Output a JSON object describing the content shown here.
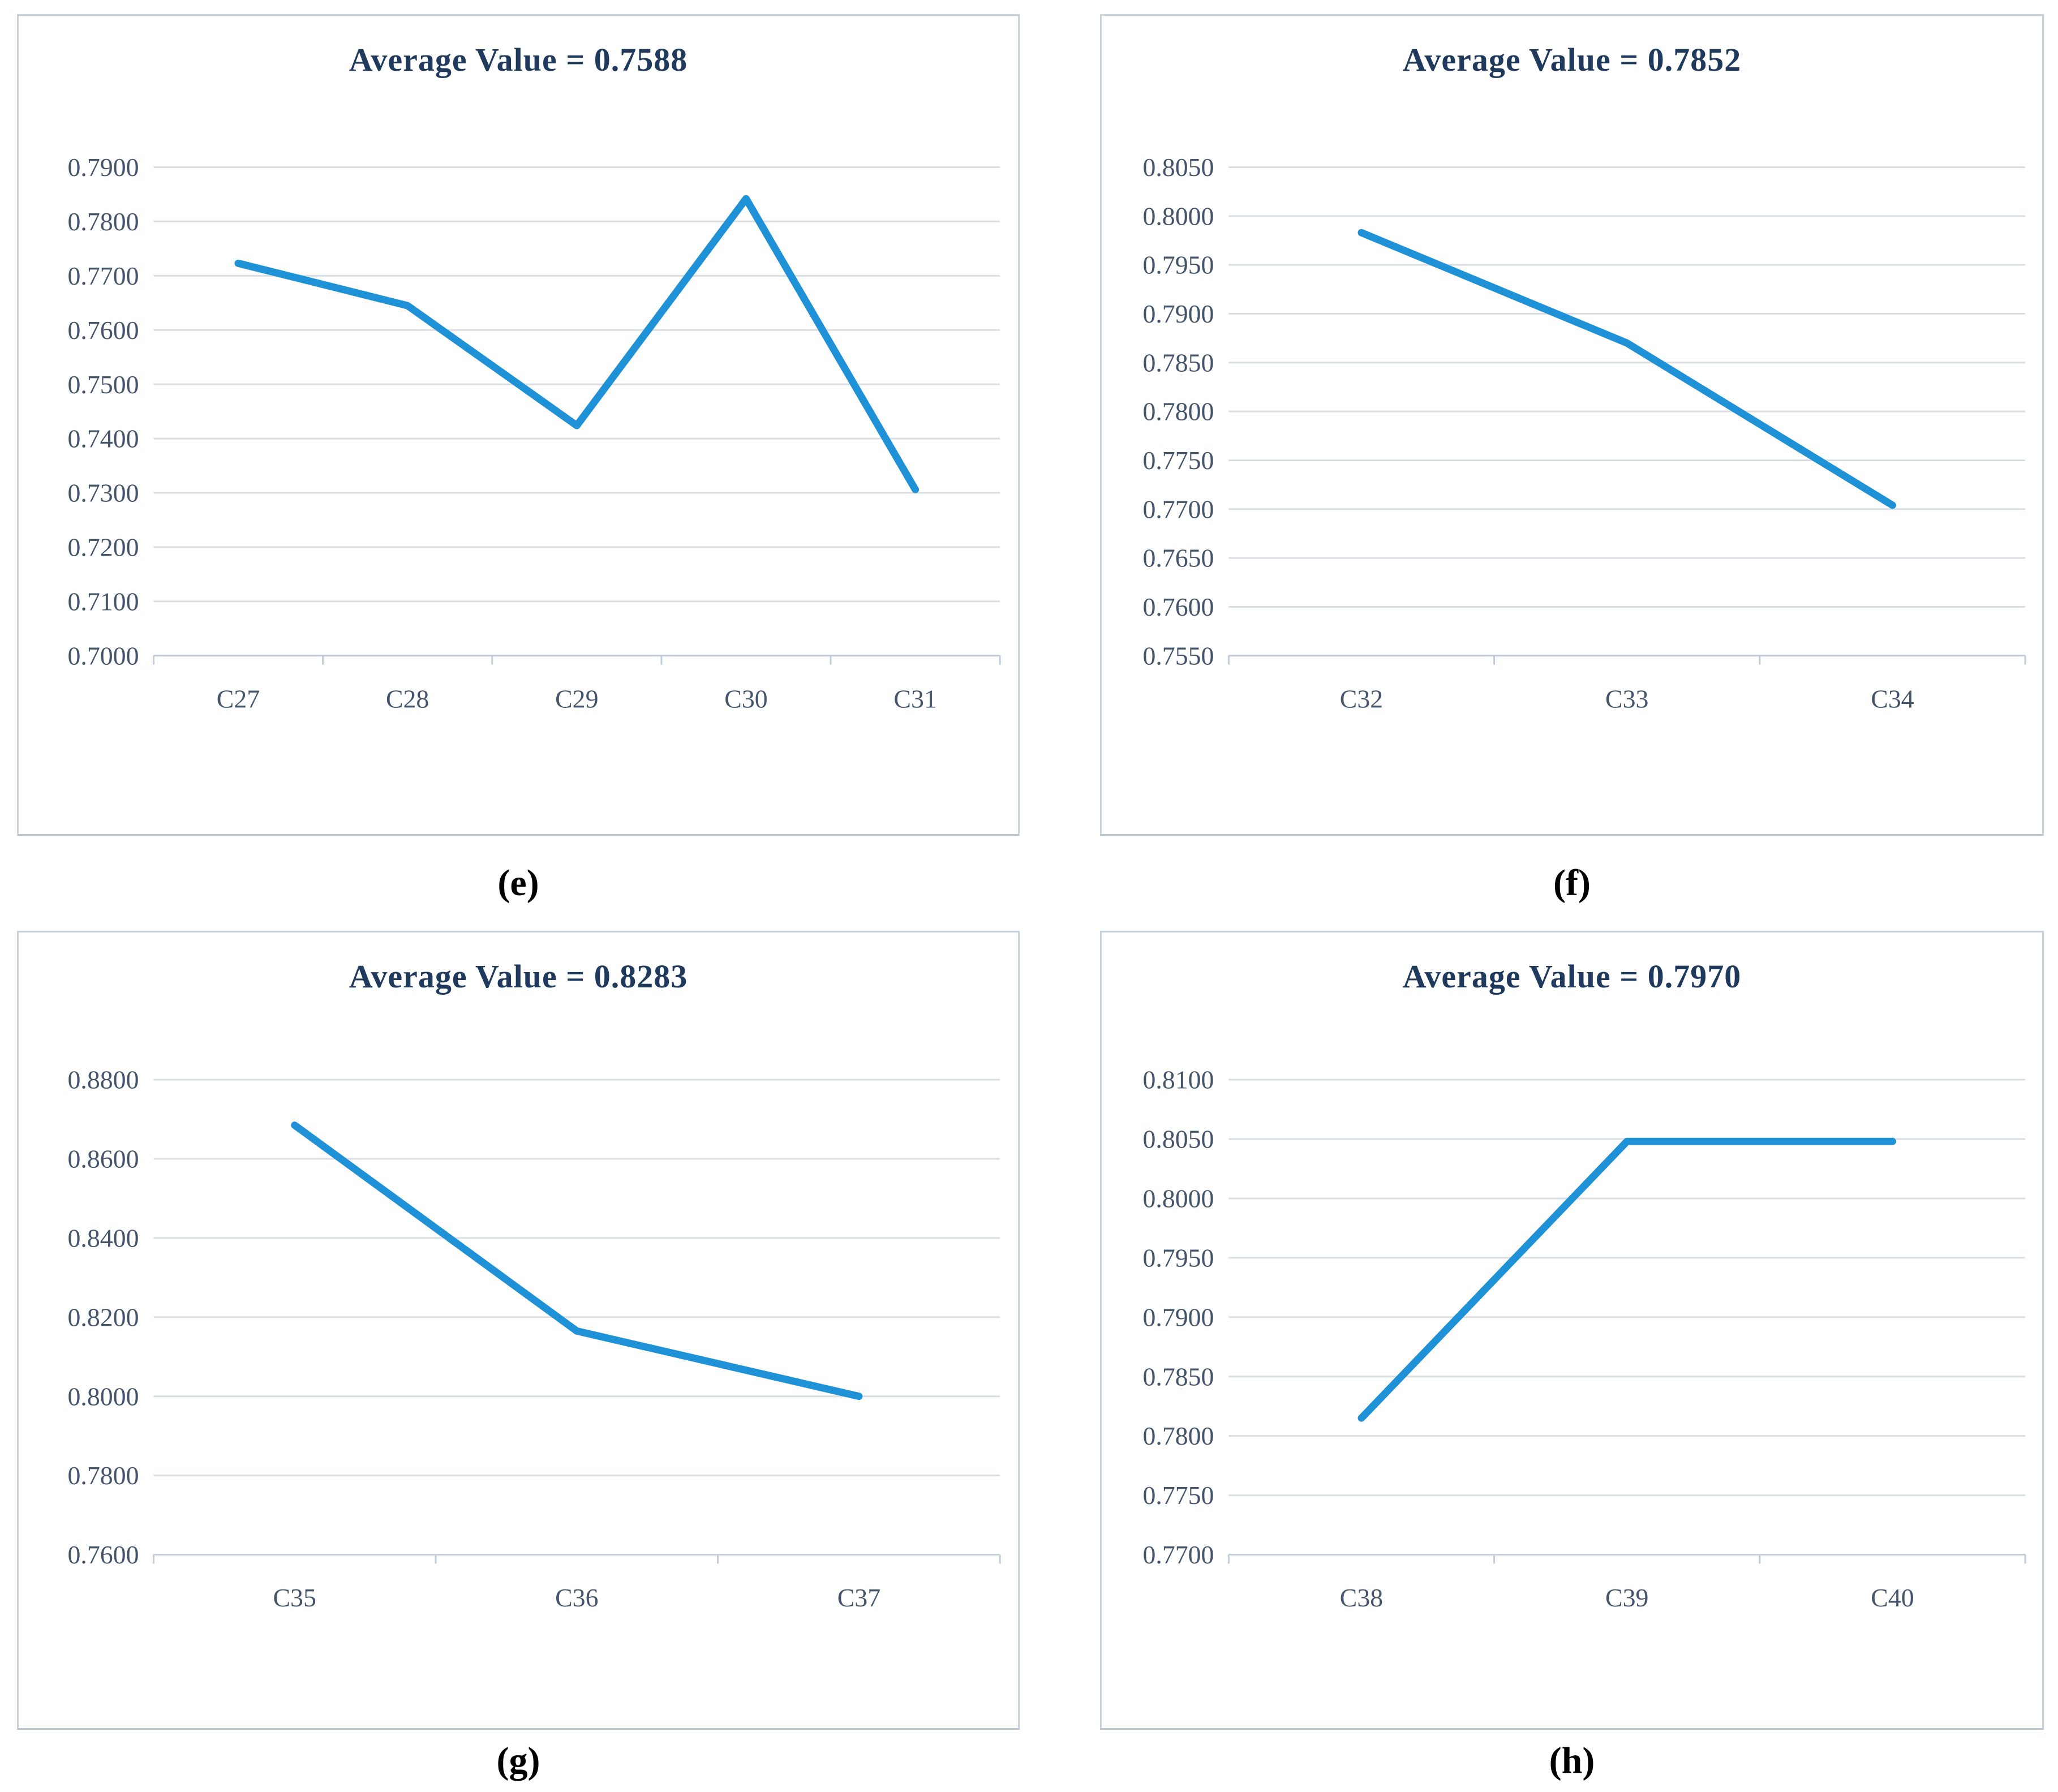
{
  "colors": {
    "line": "#1e91d7",
    "title_text": "#1f3a5c",
    "tick_text": "#44546a",
    "gridline": "#d9dee4",
    "axis_line": "#c2cdd9",
    "panel_border": "#c9d3de",
    "background": "#ffffff"
  },
  "chart_data": [
    {
      "type": "line",
      "panel_label": "(e)",
      "title": "Average Value = 0.7588",
      "average_value": 0.7588,
      "categories": [
        "C27",
        "C28",
        "C29",
        "C30",
        "C31"
      ],
      "values": [
        0.7723,
        0.7645,
        0.7424,
        0.7842,
        0.7306
      ],
      "ylim": [
        0.7,
        0.79
      ],
      "ytick_labels": [
        "0.7900",
        "0.7800",
        "0.7700",
        "0.7600",
        "0.7500",
        "0.7400",
        "0.7300",
        "0.7200",
        "0.7100",
        "0.7000"
      ],
      "xlabel": "",
      "ylabel": "",
      "grid": true,
      "legend": "none"
    },
    {
      "type": "line",
      "panel_label": "(f)",
      "title": "Average Value = 0.7852",
      "average_value": 0.7852,
      "categories": [
        "C32",
        "C33",
        "C34"
      ],
      "values": [
        0.7983,
        0.787,
        0.7704
      ],
      "ylim": [
        0.755,
        0.805
      ],
      "ytick_labels": [
        "0.8050",
        "0.8000",
        "0.7950",
        "0.7900",
        "0.7850",
        "0.7800",
        "0.7750",
        "0.7700",
        "0.7650",
        "0.7600",
        "0.7550"
      ],
      "xlabel": "",
      "ylabel": "",
      "grid": true,
      "legend": "none"
    },
    {
      "type": "line",
      "panel_label": "(g)",
      "title": "Average Value = 0.8283",
      "average_value": 0.8283,
      "categories": [
        "C35",
        "C36",
        "C37"
      ],
      "values": [
        0.8685,
        0.8165,
        0.8
      ],
      "ylim": [
        0.76,
        0.88
      ],
      "ytick_labels": [
        "0.8800",
        "0.8600",
        "0.8400",
        "0.8200",
        "0.8000",
        "0.7800",
        "0.7600"
      ],
      "xlabel": "",
      "ylabel": "",
      "grid": true,
      "legend": "none"
    },
    {
      "type": "line",
      "panel_label": "(h)",
      "title": "Average Value = 0.7970",
      "average_value": 0.797,
      "categories": [
        "C38",
        "C39",
        "C40"
      ],
      "values": [
        0.7815,
        0.8048,
        0.8048
      ],
      "ylim": [
        0.77,
        0.81
      ],
      "ytick_labels": [
        "0.8100",
        "0.8050",
        "0.8000",
        "0.7950",
        "0.7900",
        "0.7850",
        "0.7800",
        "0.7750",
        "0.7700"
      ],
      "xlabel": "",
      "ylabel": "",
      "grid": true,
      "legend": "none"
    }
  ]
}
